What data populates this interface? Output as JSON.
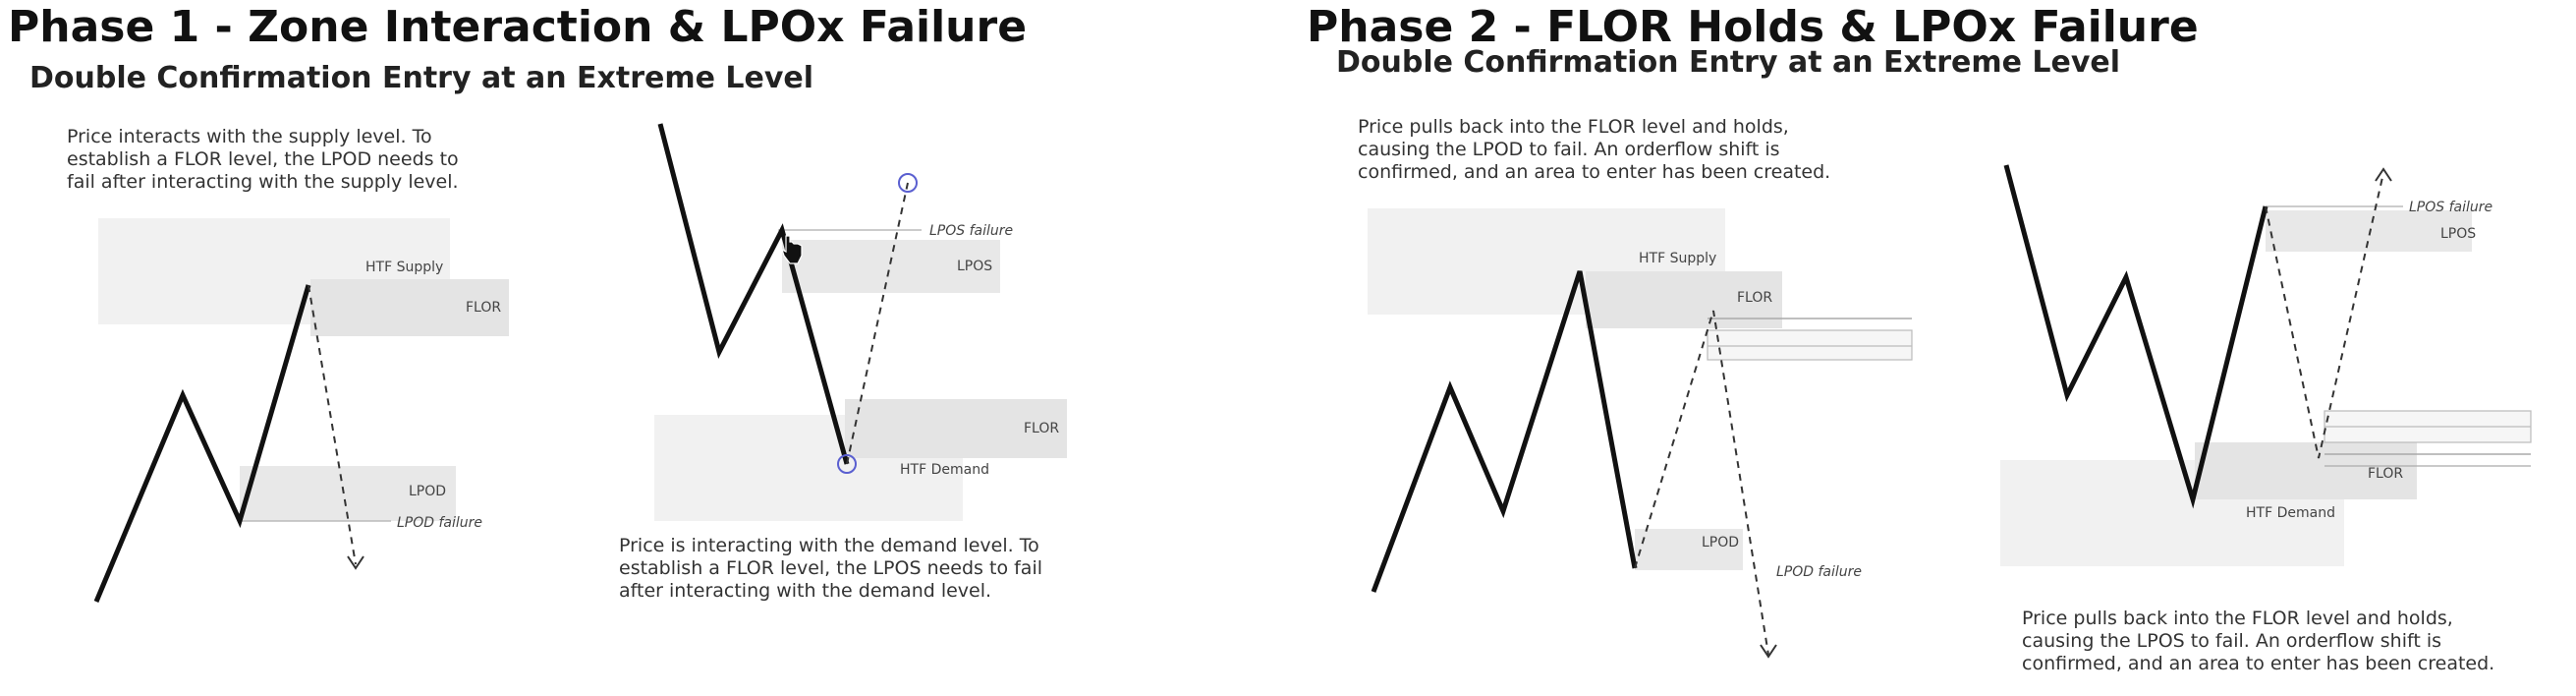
{
  "phase1": {
    "title": "Phase 1 - Zone Interaction & LPOx Failure",
    "subtitle": "Double Confirmation Entry at an Extreme Level",
    "left": {
      "desc": [
        "Price interacts with the supply level. To",
        "establish a FLOR level, the LPOD needs to",
        "fail after interacting with the supply level."
      ],
      "labels": {
        "htf_supply": "HTF Supply",
        "flor": "FLOR",
        "lpod": "LPOD",
        "lpod_failure": "LPOD failure"
      }
    },
    "right": {
      "desc": [
        "Price is interacting with the demand level. To",
        "establish a FLOR level, the LPOS needs to fail",
        "after interacting with the demand level."
      ],
      "labels": {
        "lpos_failure": "LPOS failure",
        "lpos": "LPOS",
        "flor": "FLOR",
        "htf_demand": "HTF Demand"
      }
    }
  },
  "phase2": {
    "title": "Phase 2 - FLOR Holds & LPOx Failure",
    "subtitle": "Double Confirmation Entry at an Extreme Level",
    "left": {
      "desc": [
        "Price pulls back into the FLOR level and holds,",
        "causing the LPOD to fail. An orderflow shift is",
        "confirmed, and an area to enter has been created."
      ],
      "labels": {
        "htf_supply": "HTF Supply",
        "flor": "FLOR",
        "lpod": "LPOD",
        "lpod_failure": "LPOD failure"
      }
    },
    "right": {
      "desc": [
        "Price pulls back into the FLOR level and holds,",
        "causing the LPOS to fail. An orderflow shift is",
        "confirmed, and an area to enter has been created."
      ],
      "labels": {
        "lpos_failure": "LPOS failure",
        "lpos": "LPOS",
        "flor": "FLOR",
        "htf_demand": "HTF Demand"
      }
    }
  },
  "colors": {
    "zone_light": "#f1f1f1",
    "zone_mid": "#e4e4e4",
    "line": "#111111",
    "accent_circle": "#5a5fd0"
  },
  "icons": {
    "cursor": "hand-cursor-icon"
  }
}
